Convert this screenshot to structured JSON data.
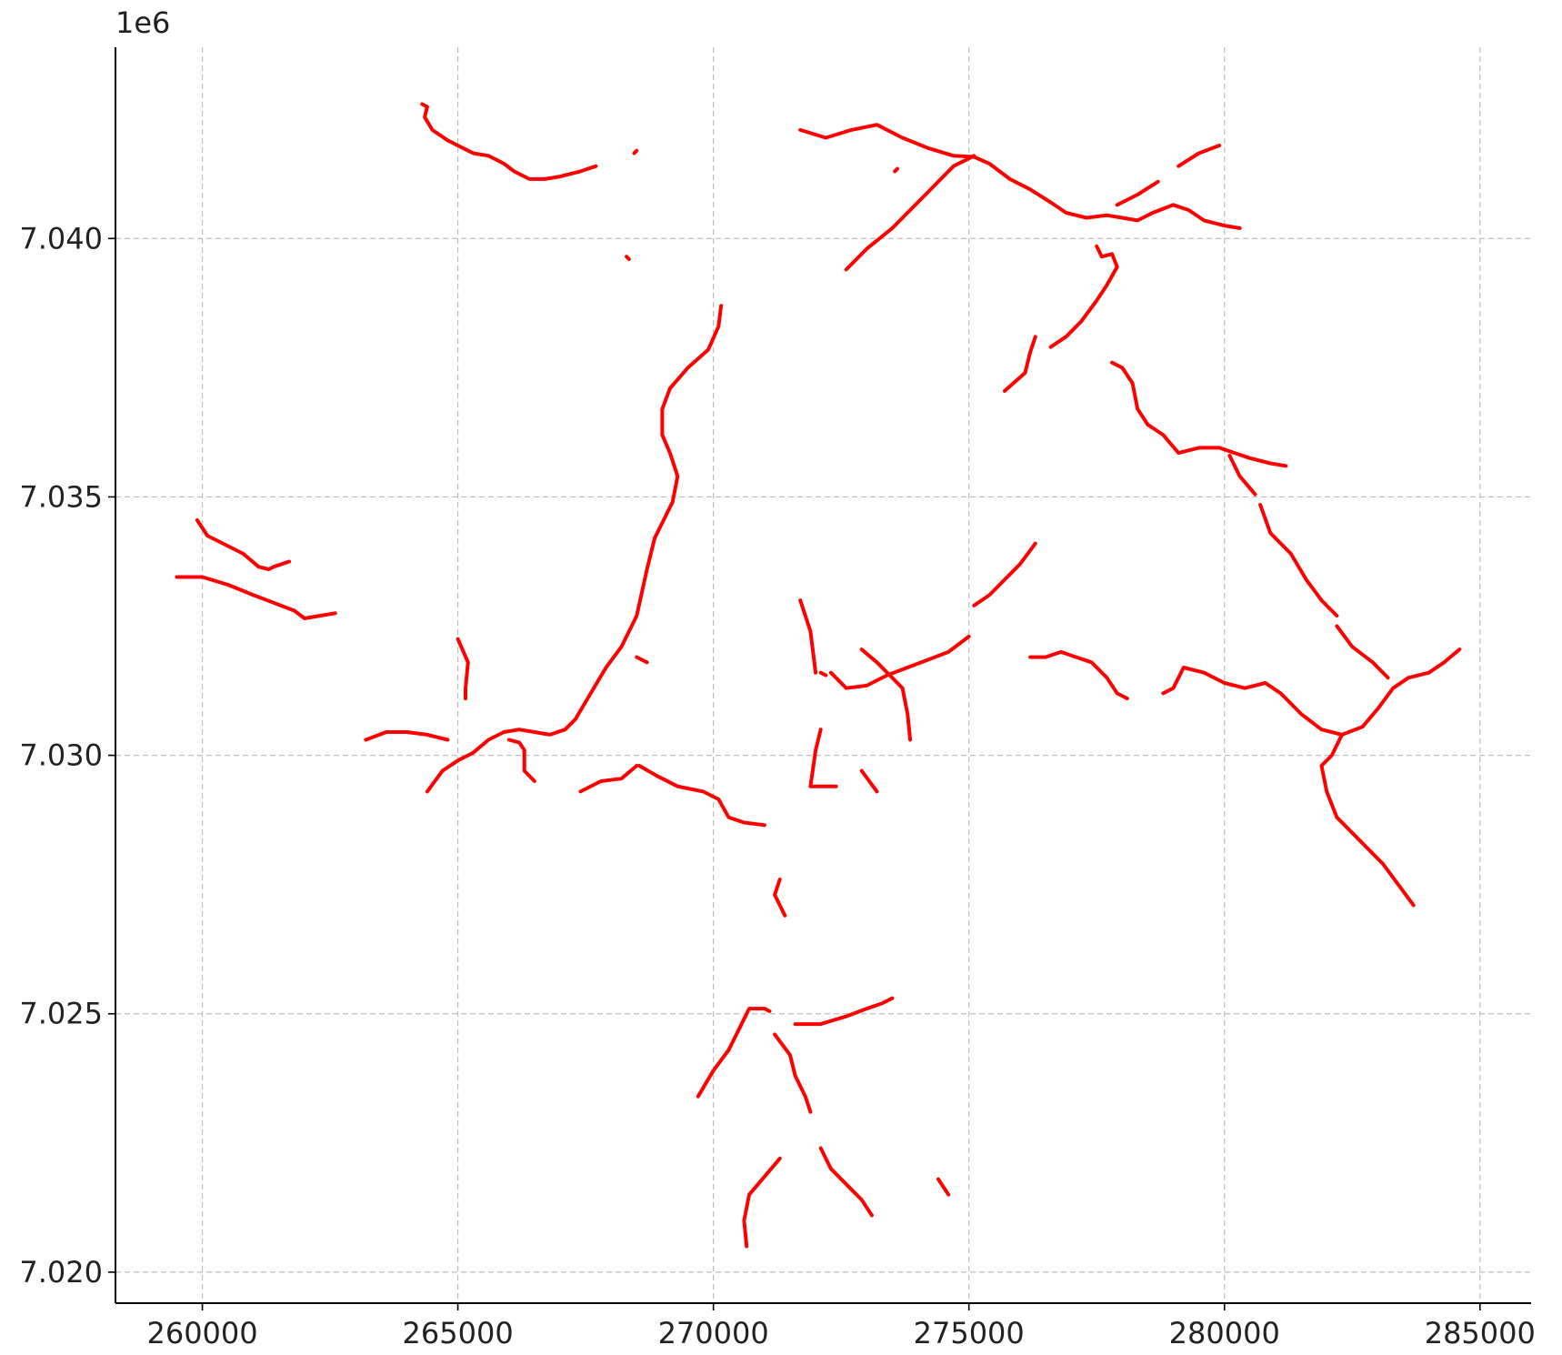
{
  "chart_data": {
    "type": "line",
    "line_color": "#ff0000",
    "grid": true,
    "grid_style": "dashed",
    "xlim": [
      258300,
      286000
    ],
    "ylim": [
      7019400,
      7043700
    ],
    "x_ticks": [
      260000,
      265000,
      270000,
      275000,
      280000,
      285000
    ],
    "x_tick_labels": [
      "260000",
      "265000",
      "270000",
      "275000",
      "280000",
      "285000"
    ],
    "y_ticks": [
      7020000,
      7025000,
      7030000,
      7035000,
      7040000
    ],
    "y_tick_labels": [
      "7.020",
      "7.025",
      "7.030",
      "7.035",
      "7.040"
    ],
    "y_offset_label": "1e6",
    "series": [
      {
        "values": [
          [
            264300,
            7042600
          ],
          [
            264400,
            7042550
          ],
          [
            264350,
            7042350
          ],
          [
            264500,
            7042100
          ],
          [
            264800,
            7041900
          ],
          [
            265000,
            7041800
          ],
          [
            265300,
            7041650
          ],
          [
            265600,
            7041600
          ],
          [
            265900,
            7041450
          ],
          [
            266100,
            7041300
          ],
          [
            266400,
            7041150
          ],
          [
            266700,
            7041150
          ],
          [
            267000,
            7041200
          ],
          [
            267400,
            7041300
          ],
          [
            267700,
            7041400
          ]
        ]
      },
      {
        "values": [
          [
            268450,
            7041650
          ],
          [
            268500,
            7041700
          ]
        ]
      },
      {
        "values": [
          [
            268300,
            7039650
          ],
          [
            268350,
            7039600
          ]
        ]
      },
      {
        "values": [
          [
            271700,
            7042100
          ],
          [
            272200,
            7041950
          ],
          [
            272700,
            7042100
          ],
          [
            273200,
            7042200
          ],
          [
            273700,
            7041950
          ],
          [
            274200,
            7041750
          ],
          [
            274700,
            7041600
          ],
          [
            275100,
            7041580
          ],
          [
            275400,
            7041450
          ],
          [
            275800,
            7041150
          ],
          [
            276200,
            7040950
          ],
          [
            276600,
            7040700
          ],
          [
            276900,
            7040500
          ],
          [
            277300,
            7040400
          ],
          [
            277700,
            7040450
          ],
          [
            278000,
            7040400
          ],
          [
            278300,
            7040350
          ],
          [
            278600,
            7040500
          ],
          [
            279000,
            7040650
          ],
          [
            279300,
            7040550
          ],
          [
            279600,
            7040350
          ],
          [
            280000,
            7040250
          ],
          [
            280300,
            7040200
          ]
        ]
      },
      {
        "values": [
          [
            272600,
            7039400
          ],
          [
            273000,
            7039800
          ],
          [
            273500,
            7040200
          ],
          [
            273900,
            7040600
          ],
          [
            274300,
            7041000
          ],
          [
            274700,
            7041400
          ],
          [
            275100,
            7041600
          ]
        ]
      },
      {
        "values": [
          [
            273550,
            7041300
          ],
          [
            273600,
            7041350
          ]
        ]
      },
      {
        "values": [
          [
            277900,
            7040650
          ],
          [
            278300,
            7040850
          ],
          [
            278700,
            7041100
          ]
        ]
      },
      {
        "values": [
          [
            279100,
            7041400
          ],
          [
            279500,
            7041650
          ],
          [
            279900,
            7041800
          ]
        ]
      },
      {
        "values": [
          [
            277500,
            7039850
          ],
          [
            277600,
            7039650
          ],
          [
            277800,
            7039700
          ],
          [
            277900,
            7039450
          ],
          [
            277700,
            7039100
          ],
          [
            277500,
            7038800
          ],
          [
            277200,
            7038400
          ],
          [
            276900,
            7038100
          ],
          [
            276600,
            7037900
          ]
        ]
      },
      {
        "values": [
          [
            276300,
            7038100
          ],
          [
            276200,
            7037800
          ],
          [
            276100,
            7037400
          ],
          [
            275700,
            7037050
          ]
        ]
      },
      {
        "values": [
          [
            267400,
            7029300
          ],
          [
            267800,
            7029500
          ],
          [
            268200,
            7029550
          ],
          [
            268500,
            7029800
          ]
        ]
      },
      {
        "values": [
          [
            259900,
            7034550
          ],
          [
            260100,
            7034250
          ],
          [
            260500,
            7034050
          ],
          [
            260800,
            7033900
          ],
          [
            261100,
            7033650
          ],
          [
            261300,
            7033600
          ],
          [
            261400,
            7033650
          ],
          [
            261700,
            7033750
          ]
        ]
      },
      {
        "values": [
          [
            259500,
            7033450
          ],
          [
            260000,
            7033450
          ],
          [
            260500,
            7033300
          ],
          [
            261000,
            7033100
          ],
          [
            261400,
            7032950
          ],
          [
            261800,
            7032800
          ],
          [
            262000,
            7032650
          ],
          [
            262300,
            7032700
          ],
          [
            262600,
            7032750
          ]
        ]
      },
      {
        "values": [
          [
            263200,
            7030300
          ],
          [
            263600,
            7030450
          ],
          [
            264000,
            7030450
          ],
          [
            264400,
            7030400
          ],
          [
            264800,
            7030300
          ]
        ]
      },
      {
        "values": [
          [
            265000,
            7032250
          ],
          [
            265200,
            7031800
          ],
          [
            265150,
            7031300
          ],
          [
            265150,
            7031100
          ]
        ]
      },
      {
        "values": [
          [
            264400,
            7029300
          ],
          [
            264700,
            7029700
          ],
          [
            265000,
            7029900
          ],
          [
            265300,
            7030050
          ],
          [
            265600,
            7030300
          ],
          [
            265900,
            7030450
          ],
          [
            266200,
            7030500
          ],
          [
            266500,
            7030450
          ],
          [
            266800,
            7030400
          ],
          [
            267100,
            7030500
          ],
          [
            267300,
            7030700
          ],
          [
            267600,
            7031200
          ],
          [
            267900,
            7031700
          ],
          [
            268200,
            7032100
          ],
          [
            268500,
            7032700
          ],
          [
            268700,
            7033600
          ],
          [
            268850,
            7034200
          ],
          [
            269200,
            7034900
          ],
          [
            269300,
            7035400
          ],
          [
            269150,
            7035850
          ],
          [
            269000,
            7036200
          ],
          [
            269000,
            7036700
          ],
          [
            269150,
            7037100
          ],
          [
            269500,
            7037500
          ],
          [
            269900,
            7037850
          ],
          [
            270100,
            7038300
          ],
          [
            270150,
            7038700
          ]
        ]
      },
      {
        "values": [
          [
            266000,
            7030300
          ],
          [
            266200,
            7030250
          ],
          [
            266300,
            7030100
          ],
          [
            266300,
            7029700
          ],
          [
            266500,
            7029500
          ]
        ]
      },
      {
        "values": [
          [
            268500,
            7031900
          ],
          [
            268700,
            7031800
          ]
        ]
      },
      {
        "values": [
          [
            268550,
            7029800
          ],
          [
            268900,
            7029600
          ],
          [
            269300,
            7029400
          ],
          [
            269800,
            7029300
          ],
          [
            270100,
            7029150
          ],
          [
            270300,
            7028800
          ],
          [
            270600,
            7028700
          ],
          [
            271000,
            7028650
          ]
        ]
      },
      {
        "values": [
          [
            271300,
            7027600
          ],
          [
            271200,
            7027300
          ],
          [
            271400,
            7026900
          ]
        ]
      },
      {
        "values": [
          [
            271700,
            7033000
          ],
          [
            271900,
            7032400
          ],
          [
            272000,
            7031600
          ]
        ]
      },
      {
        "values": [
          [
            272100,
            7031600
          ],
          [
            272200,
            7031550
          ]
        ]
      },
      {
        "values": [
          [
            272300,
            7031600
          ],
          [
            272600,
            7031300
          ],
          [
            273000,
            7031350
          ],
          [
            273400,
            7031550
          ],
          [
            273800,
            7031700
          ],
          [
            274200,
            7031850
          ],
          [
            274600,
            7032000
          ],
          [
            275000,
            7032300
          ]
        ]
      },
      {
        "values": [
          [
            272900,
            7032050
          ],
          [
            273200,
            7031800
          ],
          [
            273400,
            7031600
          ],
          [
            273700,
            7031300
          ],
          [
            273800,
            7030800
          ],
          [
            273850,
            7030300
          ]
        ]
      },
      {
        "values": [
          [
            272100,
            7030500
          ],
          [
            272000,
            7030100
          ],
          [
            271900,
            7029400
          ],
          [
            272400,
            7029400
          ]
        ]
      },
      {
        "values": [
          [
            272900,
            7029700
          ],
          [
            273200,
            7029300
          ]
        ]
      },
      {
        "values": [
          [
            275100,
            7032900
          ],
          [
            275400,
            7033100
          ],
          [
            275700,
            7033400
          ],
          [
            276000,
            7033700
          ],
          [
            276300,
            7034100
          ]
        ]
      },
      {
        "values": [
          [
            276200,
            7031900
          ],
          [
            276500,
            7031900
          ],
          [
            276800,
            7032000
          ],
          [
            277100,
            7031900
          ],
          [
            277400,
            7031800
          ],
          [
            277700,
            7031500
          ],
          [
            277900,
            7031200
          ],
          [
            278100,
            7031100
          ]
        ]
      },
      {
        "values": [
          [
            278800,
            7031200
          ],
          [
            279000,
            7031300
          ],
          [
            279200,
            7031700
          ],
          [
            279600,
            7031600
          ],
          [
            280000,
            7031400
          ],
          [
            280400,
            7031300
          ],
          [
            280800,
            7031400
          ],
          [
            281100,
            7031200
          ],
          [
            281500,
            7030800
          ],
          [
            281900,
            7030500
          ],
          [
            282300,
            7030400
          ],
          [
            282700,
            7030550
          ],
          [
            283000,
            7030900
          ],
          [
            283300,
            7031300
          ],
          [
            283600,
            7031500
          ],
          [
            284000,
            7031600
          ],
          [
            284300,
            7031800
          ],
          [
            284600,
            7032050
          ]
        ]
      },
      {
        "values": [
          [
            277800,
            7037600
          ],
          [
            278000,
            7037500
          ],
          [
            278200,
            7037200
          ],
          [
            278300,
            7036700
          ],
          [
            278500,
            7036400
          ],
          [
            278800,
            7036200
          ],
          [
            279100,
            7035850
          ],
          [
            279500,
            7035950
          ],
          [
            279900,
            7035950
          ],
          [
            280200,
            7035850
          ],
          [
            280500,
            7035750
          ],
          [
            280900,
            7035650
          ],
          [
            281200,
            7035600
          ]
        ]
      },
      {
        "values": [
          [
            280100,
            7035800
          ],
          [
            280300,
            7035400
          ],
          [
            280600,
            7035050
          ]
        ]
      },
      {
        "values": [
          [
            280700,
            7034850
          ],
          [
            280900,
            7034300
          ],
          [
            281300,
            7033900
          ],
          [
            281600,
            7033400
          ],
          [
            281900,
            7033000
          ],
          [
            282200,
            7032700
          ]
        ]
      },
      {
        "values": [
          [
            282200,
            7032500
          ],
          [
            282500,
            7032100
          ],
          [
            282900,
            7031800
          ],
          [
            283200,
            7031500
          ]
        ]
      },
      {
        "values": [
          [
            282300,
            7030400
          ],
          [
            282100,
            7030000
          ],
          [
            281900,
            7029800
          ],
          [
            282000,
            7029300
          ],
          [
            282200,
            7028800
          ],
          [
            282500,
            7028500
          ],
          [
            282800,
            7028200
          ],
          [
            283100,
            7027900
          ],
          [
            283400,
            7027500
          ],
          [
            283700,
            7027100
          ]
        ]
      },
      {
        "values": [
          [
            269700,
            7023400
          ],
          [
            270000,
            7023900
          ],
          [
            270300,
            7024300
          ],
          [
            270500,
            7024700
          ],
          [
            270700,
            7025100
          ],
          [
            271000,
            7025100
          ],
          [
            271100,
            7025050
          ]
        ]
      },
      {
        "values": [
          [
            271200,
            7024600
          ],
          [
            271500,
            7024200
          ],
          [
            271600,
            7023800
          ],
          [
            271800,
            7023400
          ],
          [
            271900,
            7023100
          ]
        ]
      },
      {
        "values": [
          [
            271600,
            7024800
          ],
          [
            272100,
            7024800
          ],
          [
            272600,
            7024950
          ],
          [
            273000,
            7025100
          ],
          [
            273300,
            7025200
          ],
          [
            273500,
            7025300
          ]
        ]
      },
      {
        "values": [
          [
            270650,
            7020500
          ],
          [
            270600,
            7021000
          ],
          [
            270700,
            7021500
          ],
          [
            271000,
            7021850
          ],
          [
            271300,
            7022200
          ]
        ]
      },
      {
        "values": [
          [
            272100,
            7022400
          ],
          [
            272300,
            7022000
          ],
          [
            272600,
            7021700
          ],
          [
            272900,
            7021400
          ],
          [
            273100,
            7021100
          ]
        ]
      },
      {
        "values": [
          [
            274400,
            7021800
          ],
          [
            274600,
            7021500
          ]
        ]
      }
    ]
  }
}
